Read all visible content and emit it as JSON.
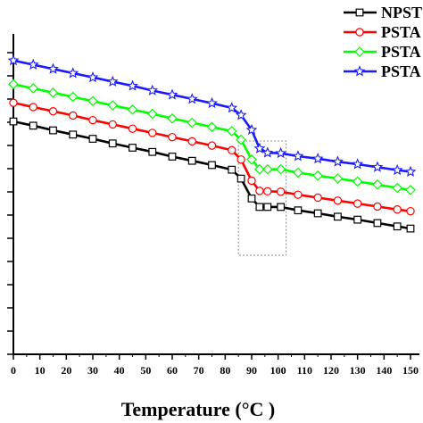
{
  "chart_data": {
    "type": "line",
    "title": "",
    "xlabel": "Temperature (°C )",
    "ylabel": "",
    "xlim": [
      0,
      150
    ],
    "xticks": [
      0,
      10,
      20,
      30,
      40,
      50,
      60,
      70,
      80,
      90,
      100,
      110,
      120,
      130,
      140,
      150
    ],
    "y_tick_labels_visible": false,
    "grid": false,
    "legend_position": "top-right",
    "annotation": "dotted rectangle highlighting the transition region near 85–103 °C",
    "highlight_x_range": [
      85,
      103
    ],
    "x": [
      0,
      7.5,
      15,
      22.5,
      30,
      37.5,
      45,
      52.5,
      60,
      67.5,
      75,
      82.5,
      86,
      90,
      93,
      96,
      101,
      107.5,
      115,
      122.5,
      130,
      137.5,
      145,
      150
    ],
    "series": [
      {
        "name": "NPST",
        "color": "#000000",
        "marker": "square",
        "values": [
          0.85,
          0.84,
          0.829,
          0.819,
          0.809,
          0.798,
          0.788,
          0.778,
          0.767,
          0.757,
          0.747,
          0.736,
          0.715,
          0.668,
          0.648,
          0.648,
          0.648,
          0.64,
          0.633,
          0.625,
          0.618,
          0.61,
          0.602,
          0.597
        ]
      },
      {
        "name": "PSTA",
        "color": "#ff0000",
        "marker": "circle",
        "values": [
          0.894,
          0.884,
          0.874,
          0.864,
          0.853,
          0.843,
          0.833,
          0.823,
          0.813,
          0.803,
          0.793,
          0.782,
          0.76,
          0.71,
          0.686,
          0.685,
          0.684,
          0.677,
          0.67,
          0.663,
          0.656,
          0.649,
          0.642,
          0.638
        ]
      },
      {
        "name": "PSTA",
        "color": "#00ff00",
        "marker": "diamond",
        "values": [
          0.938,
          0.928,
          0.918,
          0.908,
          0.898,
          0.888,
          0.878,
          0.868,
          0.857,
          0.847,
          0.837,
          0.827,
          0.807,
          0.76,
          0.737,
          0.737,
          0.737,
          0.729,
          0.722,
          0.715,
          0.708,
          0.701,
          0.693,
          0.688
        ]
      },
      {
        "name": "PSTA",
        "color": "#1a1aff",
        "marker": "star",
        "values": [
          0.994,
          0.984,
          0.974,
          0.964,
          0.954,
          0.944,
          0.934,
          0.923,
          0.913,
          0.903,
          0.893,
          0.882,
          0.865,
          0.83,
          0.786,
          0.776,
          0.775,
          0.768,
          0.762,
          0.755,
          0.749,
          0.742,
          0.735,
          0.731
        ]
      }
    ]
  }
}
